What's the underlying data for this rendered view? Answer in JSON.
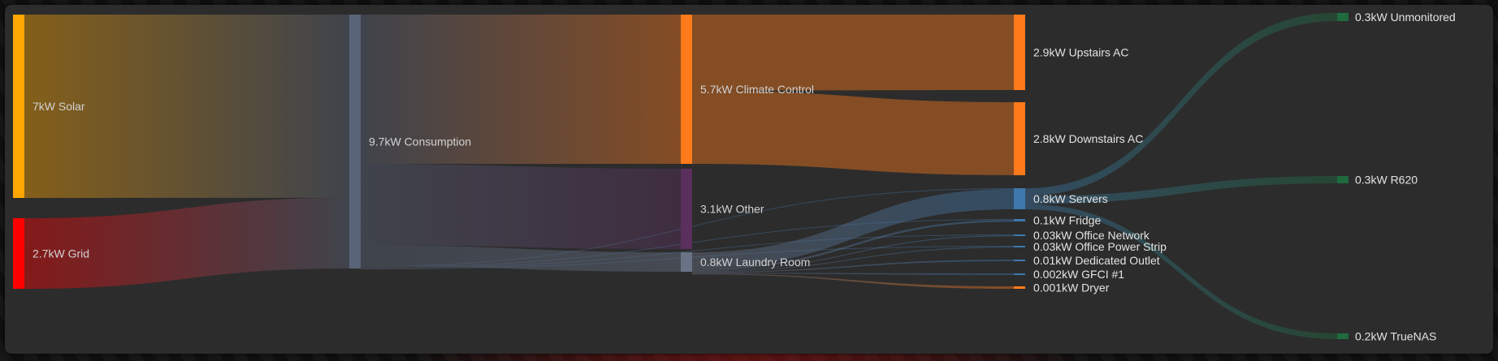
{
  "chart_data": {
    "type": "sankey",
    "colors": {
      "Solar": "#ffa600",
      "Grid": "#ff0000",
      "Consumption": "#5a6478",
      "Climate Control": "#ff7a1a",
      "Upstairs AC": "#ff7a1a",
      "Downstairs AC": "#ff7a1a",
      "Other": "#5a2f5c",
      "Laundry Room": "#6a7386",
      "Servers": "#3f78ad",
      "Fridge": "#3f78ad",
      "Office Network": "#3f78ad",
      "Office Power Strip": "#3f78ad",
      "Dedicated Outlet": "#3f78ad",
      "GFCI #1": "#3f78ad",
      "Dryer": "#ff7a1a",
      "Unmonitored": "#1f6b3e",
      "R620": "#1f6b3e",
      "TrueNAS": "#1f6b3e"
    },
    "nodes": [
      {
        "id": "Solar",
        "value": 7,
        "label": "7kW Solar"
      },
      {
        "id": "Grid",
        "value": 2.7,
        "label": "2.7kW Grid"
      },
      {
        "id": "Consumption",
        "value": 9.7,
        "label": "9.7kW Consumption"
      },
      {
        "id": "Climate Control",
        "value": 5.7,
        "label": "5.7kW Climate Control"
      },
      {
        "id": "Other",
        "value": 3.1,
        "label": "3.1kW Other"
      },
      {
        "id": "Laundry Room",
        "value": 0.8,
        "label": "0.8kW Laundry Room"
      },
      {
        "id": "Upstairs AC",
        "value": 2.9,
        "label": "2.9kW Upstairs AC"
      },
      {
        "id": "Downstairs AC",
        "value": 2.8,
        "label": "2.8kW Downstairs AC"
      },
      {
        "id": "Servers",
        "value": 0.8,
        "label": "0.8kW Servers"
      },
      {
        "id": "Fridge",
        "value": 0.1,
        "label": "0.1kW Fridge"
      },
      {
        "id": "Office Network",
        "value": 0.03,
        "label": "0.03kW Office Network"
      },
      {
        "id": "Office Power Strip",
        "value": 0.03,
        "label": "0.03kW Office Power Strip"
      },
      {
        "id": "Dedicated Outlet",
        "value": 0.01,
        "label": "0.01kW Dedicated Outlet"
      },
      {
        "id": "GFCI #1",
        "value": 0.002,
        "label": "0.002kW GFCI #1"
      },
      {
        "id": "Dryer",
        "value": 0.001,
        "label": "0.001kW Dryer"
      },
      {
        "id": "Unmonitored",
        "value": 0.3,
        "label": "0.3kW Unmonitored"
      },
      {
        "id": "R620",
        "value": 0.3,
        "label": "0.3kW R620"
      },
      {
        "id": "TrueNAS",
        "value": 0.2,
        "label": "0.2kW TrueNAS"
      }
    ],
    "links": [
      {
        "source": "Solar",
        "target": "Consumption",
        "value": 7
      },
      {
        "source": "Grid",
        "target": "Consumption",
        "value": 2.7
      },
      {
        "source": "Consumption",
        "target": "Climate Control",
        "value": 5.7
      },
      {
        "source": "Consumption",
        "target": "Other",
        "value": 3.1
      },
      {
        "source": "Consumption",
        "target": "Laundry Room",
        "value": 0.8
      },
      {
        "source": "Consumption",
        "target": "Servers",
        "value": 0.03
      },
      {
        "source": "Consumption",
        "target": "Fridge",
        "value": 0.02
      },
      {
        "source": "Consumption",
        "target": "Office Network",
        "value": 0.02
      },
      {
        "source": "Consumption",
        "target": "Office Power Strip",
        "value": 0.02
      },
      {
        "source": "Climate Control",
        "target": "Upstairs AC",
        "value": 2.9
      },
      {
        "source": "Climate Control",
        "target": "Downstairs AC",
        "value": 2.8
      },
      {
        "source": "Laundry Room",
        "target": "Servers",
        "value": 0.8
      },
      {
        "source": "Laundry Room",
        "target": "Fridge",
        "value": 0.1
      },
      {
        "source": "Laundry Room",
        "target": "Office Network",
        "value": 0.03
      },
      {
        "source": "Laundry Room",
        "target": "Office Power Strip",
        "value": 0.03
      },
      {
        "source": "Laundry Room",
        "target": "Dedicated Outlet",
        "value": 0.01
      },
      {
        "source": "Laundry Room",
        "target": "GFCI #1",
        "value": 0.002
      },
      {
        "source": "Laundry Room",
        "target": "Dryer",
        "value": 0.001
      },
      {
        "source": "Servers",
        "target": "Unmonitored",
        "value": 0.3
      },
      {
        "source": "Servers",
        "target": "R620",
        "value": 0.3
      },
      {
        "source": "Servers",
        "target": "TrueNAS",
        "value": 0.2
      }
    ]
  }
}
